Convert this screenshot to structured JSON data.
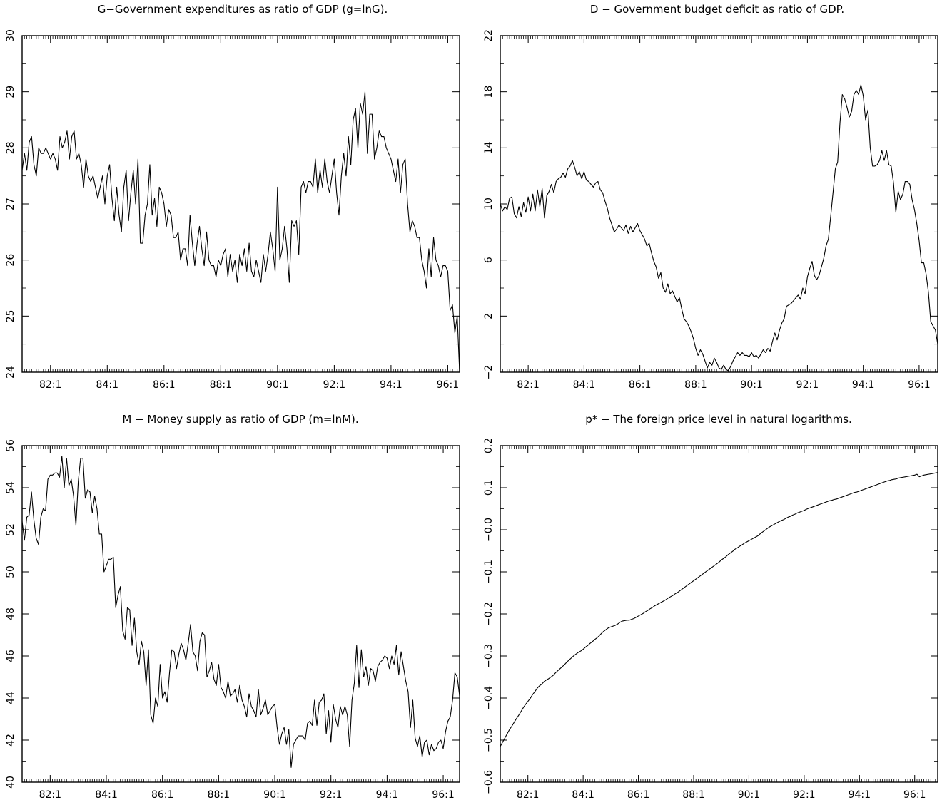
{
  "figure": {
    "x_tick_labels": [
      "82:1",
      "84:1",
      "86:1",
      "88:1",
      "90:1",
      "92:1",
      "94:1",
      "96:1"
    ]
  },
  "chart_data": [
    {
      "type": "line",
      "title": "G−Government expenditures as ratio of GDP (g=lnG).",
      "x_start": "81:1",
      "x_end": "96:4",
      "frequency": "monthly",
      "ylim": [
        24,
        30
      ],
      "yticks": [
        24,
        25,
        26,
        27,
        28,
        29,
        30
      ],
      "grid": false,
      "series": [
        {
          "values": [
            27.6,
            27.9,
            27.6,
            28.1,
            28.2,
            27.7,
            27.5,
            28.0,
            27.9,
            27.9,
            28.0,
            27.9,
            27.8,
            27.9,
            27.8,
            27.6,
            28.2,
            28.0,
            28.1,
            28.3,
            27.8,
            28.2,
            28.3,
            27.8,
            27.9,
            27.7,
            27.3,
            27.8,
            27.5,
            27.4,
            27.5,
            27.3,
            27.1,
            27.3,
            27.5,
            27.0,
            27.5,
            27.7,
            27.1,
            26.7,
            27.3,
            26.8,
            26.5,
            27.3,
            27.6,
            26.7,
            27.2,
            27.6,
            27.0,
            27.8,
            26.3,
            26.3,
            26.8,
            27.0,
            27.7,
            26.8,
            27.1,
            26.6,
            27.3,
            27.2,
            27.0,
            26.6,
            26.9,
            26.8,
            26.4,
            26.4,
            26.5,
            26.0,
            26.2,
            26.2,
            25.9,
            26.8,
            26.3,
            25.9,
            26.3,
            26.6,
            26.2,
            25.9,
            26.5,
            26.0,
            25.9,
            25.9,
            25.7,
            26.0,
            25.9,
            26.1,
            26.2,
            25.7,
            26.1,
            25.8,
            26.0,
            25.6,
            26.1,
            25.9,
            26.2,
            25.8,
            26.3,
            25.8,
            25.7,
            26.0,
            25.8,
            25.6,
            26.1,
            25.8,
            26.1,
            26.5,
            26.2,
            25.8,
            27.3,
            26.0,
            26.2,
            26.6,
            26.2,
            25.6,
            26.7,
            26.6,
            26.7,
            26.1,
            27.3,
            27.4,
            27.2,
            27.4,
            27.4,
            27.3,
            27.8,
            27.2,
            27.6,
            27.3,
            27.8,
            27.4,
            27.2,
            27.5,
            27.8,
            27.2,
            26.8,
            27.5,
            27.9,
            27.5,
            28.2,
            27.7,
            28.5,
            28.7,
            28.0,
            28.8,
            28.6,
            29.0,
            27.9,
            28.6,
            28.6,
            27.8,
            28.0,
            28.3,
            28.2,
            28.2,
            28.0,
            27.9,
            27.8,
            27.6,
            27.4,
            27.8,
            27.2,
            27.7,
            27.8,
            27.0,
            26.5,
            26.7,
            26.6,
            26.4,
            26.4,
            26.0,
            25.8,
            25.5,
            26.2,
            25.7,
            26.4,
            26.0,
            25.9,
            25.7,
            25.9,
            25.9,
            25.8,
            25.1,
            25.2,
            24.7,
            25.0,
            24.0
          ]
        }
      ]
    },
    {
      "type": "line",
      "title": "D − Government budget deficit as ratio of GDP.",
      "x_start": "81:1",
      "x_end": "96:4",
      "frequency": "monthly",
      "ylim": [
        -2,
        22
      ],
      "yticks": [
        -2,
        2,
        6,
        10,
        14,
        18,
        22
      ],
      "grid": false,
      "series": [
        {
          "values": [
            10.0,
            9.5,
            9.8,
            9.6,
            10.4,
            10.5,
            9.3,
            9.0,
            9.8,
            9.1,
            10.1,
            9.4,
            10.5,
            9.5,
            10.7,
            9.5,
            11.0,
            9.8,
            11.1,
            9.0,
            10.6,
            10.9,
            11.4,
            10.8,
            11.6,
            11.8,
            11.9,
            12.2,
            11.9,
            12.5,
            12.7,
            13.1,
            12.6,
            12.0,
            12.3,
            11.8,
            12.3,
            11.7,
            11.6,
            11.4,
            11.2,
            11.5,
            11.6,
            11.0,
            10.8,
            10.2,
            9.7,
            9.0,
            8.5,
            8.0,
            8.2,
            8.5,
            8.3,
            8.1,
            8.5,
            7.9,
            8.4,
            8.0,
            8.3,
            8.6,
            8.1,
            7.8,
            7.5,
            7.0,
            7.2,
            6.5,
            5.9,
            5.5,
            4.7,
            5.1,
            4.0,
            3.7,
            4.3,
            3.6,
            3.8,
            3.4,
            3.0,
            3.3,
            2.5,
            1.8,
            1.6,
            1.3,
            0.9,
            0.4,
            -0.3,
            -0.8,
            -0.4,
            -0.7,
            -1.2,
            -1.7,
            -1.3,
            -1.5,
            -1.0,
            -1.3,
            -1.7,
            -1.8,
            -1.5,
            -1.8,
            -1.9,
            -1.6,
            -1.2,
            -0.9,
            -0.6,
            -0.8,
            -0.6,
            -0.8,
            -0.8,
            -0.9,
            -0.6,
            -0.9,
            -0.8,
            -1.0,
            -0.7,
            -0.4,
            -0.6,
            -0.3,
            -0.5,
            0.2,
            0.8,
            0.3,
            1.0,
            1.5,
            1.8,
            2.7,
            2.8,
            2.9,
            3.1,
            3.3,
            3.5,
            3.2,
            4.0,
            3.6,
            4.8,
            5.4,
            5.9,
            4.9,
            4.6,
            4.9,
            5.5,
            6.1,
            7.0,
            7.5,
            9.1,
            10.8,
            12.5,
            13.0,
            15.8,
            17.8,
            17.5,
            16.9,
            16.2,
            16.6,
            17.8,
            18.1,
            17.8,
            18.5,
            17.7,
            16.0,
            16.7,
            14.0,
            12.7,
            12.7,
            12.8,
            13.1,
            13.8,
            13.1,
            13.8,
            12.8,
            12.7,
            11.5,
            9.4,
            10.9,
            10.3,
            10.7,
            11.6,
            11.6,
            11.4,
            10.3,
            9.6,
            8.6,
            7.4,
            5.8,
            5.8,
            5.0,
            3.7,
            1.6,
            1.3,
            1.0,
            0.0
          ]
        }
      ]
    },
    {
      "type": "line",
      "title": "M − Money supply as ratio of GDP (m=lnM).",
      "x_start": "81:1",
      "x_end": "96:4",
      "frequency": "monthly",
      "ylim": [
        40,
        56
      ],
      "yticks": [
        40,
        42,
        44,
        46,
        48,
        50,
        52,
        54,
        56
      ],
      "grid": false,
      "series": [
        {
          "values": [
            52.4,
            51.5,
            52.6,
            52.7,
            53.8,
            52.5,
            51.6,
            51.3,
            52.6,
            53.0,
            52.9,
            54.4,
            54.6,
            54.6,
            54.7,
            54.7,
            54.5,
            55.5,
            54.0,
            55.4,
            54.1,
            54.4,
            53.6,
            52.2,
            54.3,
            55.4,
            55.4,
            53.5,
            53.9,
            53.8,
            52.8,
            53.6,
            53.0,
            51.8,
            51.8,
            50.0,
            50.3,
            50.6,
            50.6,
            50.7,
            48.3,
            48.9,
            49.3,
            47.2,
            46.8,
            48.3,
            48.2,
            46.5,
            47.8,
            46.2,
            45.6,
            46.7,
            46.2,
            44.6,
            46.3,
            43.2,
            42.8,
            44.0,
            43.6,
            45.6,
            44.0,
            44.3,
            43.8,
            45.2,
            46.3,
            46.2,
            45.4,
            46.1,
            46.6,
            46.3,
            45.8,
            46.6,
            47.5,
            46.2,
            46.0,
            45.3,
            46.7,
            47.1,
            47.0,
            45.0,
            45.3,
            45.7,
            44.9,
            44.6,
            45.6,
            44.5,
            44.3,
            44.0,
            44.8,
            44.1,
            44.2,
            44.4,
            43.8,
            44.6,
            43.9,
            43.6,
            43.1,
            44.2,
            43.6,
            43.4,
            43.1,
            44.4,
            43.2,
            43.5,
            43.9,
            43.2,
            43.4,
            43.6,
            43.7,
            42.6,
            41.8,
            42.3,
            42.6,
            41.8,
            42.5,
            40.7,
            41.8,
            42.0,
            42.2,
            42.2,
            42.2,
            42.0,
            42.8,
            42.9,
            42.7,
            43.9,
            42.7,
            43.8,
            43.9,
            44.2,
            42.3,
            43.4,
            41.9,
            43.7,
            43.0,
            42.6,
            43.6,
            43.2,
            43.6,
            43.2,
            41.7,
            43.9,
            44.7,
            46.5,
            44.5,
            46.3,
            45.0,
            45.5,
            44.6,
            45.4,
            45.3,
            44.8,
            45.5,
            45.7,
            45.8,
            46.0,
            45.9,
            45.4,
            46.0,
            45.6,
            46.5,
            45.1,
            46.2,
            45.5,
            44.8,
            44.3,
            42.6,
            43.9,
            42.1,
            41.7,
            42.2,
            41.2,
            41.9,
            42.0,
            41.3,
            41.8,
            41.5,
            41.6,
            41.9,
            42.0,
            41.6,
            42.4,
            42.9,
            43.1,
            43.9,
            45.2,
            45.0,
            44.1
          ]
        }
      ]
    },
    {
      "type": "line",
      "title": "p* − The foreign price level in natural logarithms.",
      "x_start": "81:1",
      "x_end": "96:4",
      "frequency": "monthly",
      "ylim": [
        -0.6,
        0.2
      ],
      "yticks": [
        -0.6,
        -0.5,
        -0.4,
        -0.3,
        -0.2,
        -0.1,
        0.0,
        0.1,
        0.2
      ],
      "ytick_labels": [
        "−0.6",
        "−0.5",
        "−0.4",
        "−0.3",
        "−0.2",
        "−0.1",
        "−0.0",
        "0.1",
        "0.2"
      ],
      "grid": false,
      "series": [
        {
          "values": [
            -0.515,
            -0.505,
            -0.495,
            -0.485,
            -0.475,
            -0.467,
            -0.458,
            -0.449,
            -0.441,
            -0.432,
            -0.423,
            -0.415,
            -0.408,
            -0.401,
            -0.392,
            -0.385,
            -0.377,
            -0.371,
            -0.367,
            -0.361,
            -0.357,
            -0.354,
            -0.35,
            -0.346,
            -0.34,
            -0.335,
            -0.33,
            -0.325,
            -0.32,
            -0.314,
            -0.309,
            -0.304,
            -0.299,
            -0.295,
            -0.291,
            -0.288,
            -0.284,
            -0.279,
            -0.275,
            -0.27,
            -0.266,
            -0.261,
            -0.257,
            -0.252,
            -0.246,
            -0.241,
            -0.237,
            -0.233,
            -0.231,
            -0.229,
            -0.227,
            -0.224,
            -0.22,
            -0.217,
            -0.216,
            -0.215,
            -0.215,
            -0.213,
            -0.211,
            -0.208,
            -0.205,
            -0.202,
            -0.199,
            -0.195,
            -0.192,
            -0.188,
            -0.185,
            -0.181,
            -0.178,
            -0.175,
            -0.172,
            -0.169,
            -0.166,
            -0.162,
            -0.159,
            -0.156,
            -0.152,
            -0.149,
            -0.145,
            -0.141,
            -0.137,
            -0.133,
            -0.129,
            -0.125,
            -0.121,
            -0.117,
            -0.113,
            -0.109,
            -0.105,
            -0.101,
            -0.097,
            -0.093,
            -0.089,
            -0.085,
            -0.081,
            -0.077,
            -0.072,
            -0.068,
            -0.064,
            -0.059,
            -0.055,
            -0.051,
            -0.046,
            -0.043,
            -0.039,
            -0.036,
            -0.032,
            -0.029,
            -0.026,
            -0.023,
            -0.02,
            -0.017,
            -0.014,
            -0.009,
            -0.005,
            -0.001,
            0.003,
            0.007,
            0.01,
            0.013,
            0.016,
            0.019,
            0.022,
            0.024,
            0.027,
            0.03,
            0.032,
            0.035,
            0.037,
            0.04,
            0.042,
            0.044,
            0.046,
            0.049,
            0.051,
            0.053,
            0.055,
            0.057,
            0.059,
            0.061,
            0.063,
            0.065,
            0.067,
            0.069,
            0.07,
            0.072,
            0.073,
            0.075,
            0.077,
            0.079,
            0.081,
            0.083,
            0.085,
            0.087,
            0.089,
            0.09,
            0.092,
            0.094,
            0.096,
            0.098,
            0.1,
            0.102,
            0.104,
            0.106,
            0.108,
            0.11,
            0.112,
            0.114,
            0.116,
            0.117,
            0.119,
            0.12,
            0.121,
            0.123,
            0.124,
            0.125,
            0.126,
            0.127,
            0.128,
            0.129,
            0.13,
            0.132,
            0.126,
            0.128,
            0.13,
            0.131,
            0.132,
            0.133,
            0.134,
            0.135,
            0.136
          ]
        }
      ]
    }
  ]
}
